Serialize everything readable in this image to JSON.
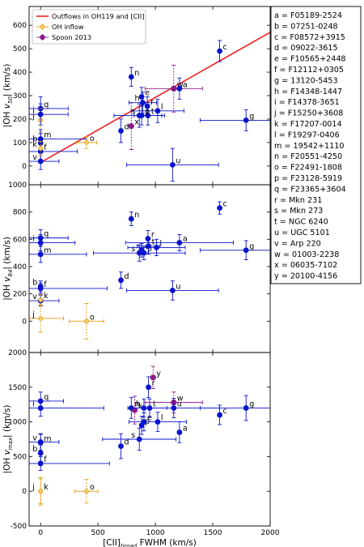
{
  "colors": {
    "blue": "#0a14cc",
    "orange": "#e59a0c",
    "purple": "#8b1a8b",
    "line": "#ee1111"
  },
  "legend_panel": {
    "entries": [
      {
        "key": "a",
        "name": "F05189-2524"
      },
      {
        "key": "b",
        "name": "07251-0248"
      },
      {
        "key": "c",
        "name": "F08572+3915"
      },
      {
        "key": "d",
        "name": "09022-3615"
      },
      {
        "key": "e",
        "name": "F10565+2448"
      },
      {
        "key": "f",
        "name": "F12112+0305"
      },
      {
        "key": "g",
        "name": "13120-5453"
      },
      {
        "key": "h",
        "name": "F14348-1447"
      },
      {
        "key": "i",
        "name": "F14378-3651"
      },
      {
        "key": "j",
        "name": "F15250+3608"
      },
      {
        "key": "k",
        "name": "F17207-0014"
      },
      {
        "key": "l",
        "name": "F19297-0406"
      },
      {
        "key": "m",
        "name": "19542+1110"
      },
      {
        "key": "n",
        "name": "F20551-4250"
      },
      {
        "key": "o",
        "name": "F22491-1808"
      },
      {
        "key": "p",
        "name": "F23128-5919"
      },
      {
        "key": "q",
        "name": "F23365+3604"
      },
      {
        "key": "r",
        "name": "Mkn 231"
      },
      {
        "key": "s",
        "name": "Mkn 273"
      },
      {
        "key": "t",
        "name": "NGC 6240"
      },
      {
        "key": "u",
        "name": "UGC 5101"
      },
      {
        "key": "v",
        "name": "Arp 220"
      },
      {
        "key": "w",
        "name": "01003-2238"
      },
      {
        "key": "x",
        "name": "06035-7102"
      },
      {
        "key": "y",
        "name": "20100-4156"
      }
    ]
  },
  "chart_data": [
    {
      "type": "scatter",
      "ylabel": "|OH v50| (km/s)",
      "ylabel_parts": {
        "main": "|OH ",
        "sym": "v",
        "sub": "50",
        "tail": "| (km/s)"
      },
      "xlim": [
        -100,
        2000
      ],
      "ylim": [
        -80,
        680
      ],
      "yticks": [
        0,
        100,
        200,
        300,
        400,
        500,
        600
      ],
      "legend": [
        "Outflows in OH119 and [CII]",
        "OH inflow",
        "Spoon 2013"
      ],
      "fit_line": {
        "x": [
          0,
          2000
        ],
        "y": [
          15,
          570
        ]
      },
      "points": [
        {
          "l": "q",
          "x": 0,
          "y": 245,
          "xe": 240,
          "ye": 50,
          "s": "blue",
          "lp": "r"
        },
        {
          "l": "j",
          "x": 0,
          "y": 195,
          "xe": 0,
          "ye": 50,
          "s": "orange",
          "lp": "l"
        },
        {
          "l": "i",
          "x": 0,
          "y": 220,
          "xe": 240,
          "ye": 45,
          "s": "blue",
          "lp": "l"
        },
        {
          "l": "m",
          "x": 0,
          "y": 115,
          "xe": 400,
          "ye": 40,
          "s": "blue",
          "lp": "r"
        },
        {
          "l": "b",
          "x": 0,
          "y": 98,
          "xe": 0,
          "ye": 40,
          "s": "blue",
          "lp": "l"
        },
        {
          "l": "f",
          "x": 0,
          "y": 62,
          "xe": 320,
          "ye": 35,
          "s": "blue",
          "lp": "r"
        },
        {
          "l": "v",
          "x": 0,
          "y": 20,
          "xe": 160,
          "ye": 35,
          "s": "blue",
          "lp": "l"
        },
        {
          "l": "k",
          "x": 0,
          "y": 75,
          "xe": 0,
          "ye": 30,
          "s": "orange",
          "lp": "l"
        },
        {
          "l": "o",
          "x": 400,
          "y": 100,
          "xe": 90,
          "ye": 25,
          "s": "orange",
          "lp": "r"
        },
        {
          "l": "d",
          "x": 700,
          "y": 150,
          "xe": 0,
          "ye": 50,
          "s": "blue",
          "lp": "r"
        },
        {
          "l": "n",
          "x": 790,
          "y": 380,
          "xe": 0,
          "ye": 40,
          "s": "blue",
          "lp": "r"
        },
        {
          "l": "s",
          "x": 860,
          "y": 215,
          "xe": 220,
          "ye": 50,
          "s": "blue",
          "lp": "l"
        },
        {
          "l": "x",
          "x": 790,
          "y": 170,
          "xe": 0,
          "ye": 100,
          "s": "purple",
          "lp": "r"
        },
        {
          "l": "h",
          "x": 890,
          "y": 270,
          "xe": 120,
          "ye": 45,
          "s": "blue",
          "lp": "l"
        },
        {
          "l": "e",
          "x": 880,
          "y": 295,
          "xe": 0,
          "ye": 40,
          "s": "blue",
          "lp": "r"
        },
        {
          "l": "r",
          "x": 930,
          "y": 255,
          "xe": 0,
          "ye": 40,
          "s": "blue",
          "lp": "r"
        },
        {
          "l": "t",
          "x": 935,
          "y": 215,
          "xe": 120,
          "ye": 40,
          "s": "blue",
          "lp": "r"
        },
        {
          "l": "l",
          "x": 1020,
          "y": 235,
          "xe": 230,
          "ye": 50,
          "s": "blue",
          "lp": "r"
        },
        {
          "l": "p",
          "x": 880,
          "y": 215,
          "xe": 0,
          "ye": 40,
          "s": "blue",
          "lp": "r"
        },
        {
          "l": "w",
          "x": 1160,
          "y": 330,
          "xe": 250,
          "ye": 100,
          "s": "purple",
          "lp": "r"
        },
        {
          "l": "a",
          "x": 1210,
          "y": 330,
          "xe": 0,
          "ye": 45,
          "s": "blue",
          "lp": "r"
        },
        {
          "l": "u",
          "x": 1150,
          "y": 5,
          "xe": 400,
          "ye": 70,
          "s": "blue",
          "lp": "r"
        },
        {
          "l": "c",
          "x": 1560,
          "y": 490,
          "xe": 0,
          "ye": 45,
          "s": "blue",
          "lp": "r"
        },
        {
          "l": "g",
          "x": 1790,
          "y": 195,
          "xe": 400,
          "ye": 45,
          "s": "blue",
          "lp": "r"
        }
      ]
    },
    {
      "type": "scatter",
      "ylabel": "|OH v84| (km/s)",
      "ylabel_parts": {
        "main": "|OH ",
        "sym": "v",
        "sub": "84",
        "tail": "| (km/s)"
      },
      "xlim": [
        -100,
        2000
      ],
      "ylim": [
        -230,
        1000
      ],
      "yticks": [
        0,
        200,
        400,
        600,
        800,
        1000
      ],
      "points": [
        {
          "l": "q",
          "x": 0,
          "y": 610,
          "xe": 240,
          "ye": 60,
          "s": "blue",
          "lp": "r"
        },
        {
          "l": "i",
          "x": 0,
          "y": 575,
          "xe": 300,
          "ye": 60,
          "s": "blue",
          "lp": "l"
        },
        {
          "l": "m",
          "x": 0,
          "y": 490,
          "xe": 400,
          "ye": 60,
          "s": "blue",
          "lp": "r"
        },
        {
          "l": "b",
          "x": 0,
          "y": 255,
          "xe": 0,
          "ye": 40,
          "s": "blue",
          "lp": "l"
        },
        {
          "l": "f",
          "x": 0,
          "y": 240,
          "xe": 580,
          "ye": 40,
          "s": "blue",
          "lp": "r"
        },
        {
          "l": "v",
          "x": 0,
          "y": 150,
          "xe": 160,
          "ye": 40,
          "s": "blue",
          "lp": "l"
        },
        {
          "l": "k",
          "x": 0,
          "y": 155,
          "xe": 0,
          "ye": 40,
          "s": "orange",
          "lp": "r"
        },
        {
          "l": "j",
          "x": 0,
          "y": 20,
          "xe": 200,
          "ye": 100,
          "s": "orange",
          "lp": "l"
        },
        {
          "l": "o",
          "x": 400,
          "y": 0,
          "xe": 150,
          "ye": 130,
          "s": "orange",
          "lp": "r"
        },
        {
          "l": "d",
          "x": 700,
          "y": 300,
          "xe": 0,
          "ye": 60,
          "s": "blue",
          "lp": "r"
        },
        {
          "l": "n",
          "x": 790,
          "y": 750,
          "xe": 0,
          "ye": 50,
          "s": "blue",
          "lp": "r"
        },
        {
          "l": "s",
          "x": 860,
          "y": 500,
          "xe": 400,
          "ye": 60,
          "s": "blue",
          "lp": "l"
        },
        {
          "l": "p",
          "x": 900,
          "y": 500,
          "xe": 0,
          "ye": 50,
          "s": "blue",
          "lp": "r"
        },
        {
          "l": "e",
          "x": 880,
          "y": 520,
          "xe": 0,
          "ye": 50,
          "s": "blue",
          "lp": "r"
        },
        {
          "l": "r",
          "x": 935,
          "y": 605,
          "xe": 0,
          "ye": 60,
          "s": "blue",
          "lp": "r"
        },
        {
          "l": "t",
          "x": 940,
          "y": 550,
          "xe": 100,
          "ye": 60,
          "s": "blue",
          "lp": "r"
        },
        {
          "l": "l",
          "x": 1010,
          "y": 540,
          "xe": 250,
          "ye": 60,
          "s": "blue",
          "lp": "r"
        },
        {
          "l": "a",
          "x": 1210,
          "y": 575,
          "xe": 470,
          "ye": 60,
          "s": "blue",
          "lp": "r"
        },
        {
          "l": "u",
          "x": 1150,
          "y": 225,
          "xe": 400,
          "ye": 70,
          "s": "blue",
          "lp": "r"
        },
        {
          "l": "c",
          "x": 1560,
          "y": 830,
          "xe": 0,
          "ye": 45,
          "s": "blue",
          "lp": "r"
        },
        {
          "l": "g",
          "x": 1790,
          "y": 520,
          "xe": 400,
          "ye": 70,
          "s": "blue",
          "lp": "r"
        }
      ]
    },
    {
      "type": "scatter",
      "ylabel": "|OH v_max| (km/s)",
      "ylabel_parts": {
        "main": "|OH ",
        "sym": "v",
        "sub": "max",
        "tail": "| (km/s)"
      },
      "xlabel": "[CII]broad FWHM (km/s)",
      "xlabel_parts": {
        "main": "[CII]",
        "sub": "broad",
        "tail": " FWHM (km/s)"
      },
      "xlim": [
        -100,
        2000
      ],
      "ylim": [
        -500,
        2000
      ],
      "xticks": [
        0,
        500,
        1000,
        1500,
        2000
      ],
      "yticks": [
        -500,
        0,
        500,
        1000,
        1500,
        2000
      ],
      "points": [
        {
          "l": "q",
          "x": 0,
          "y": 1300,
          "xe": 200,
          "ye": 130,
          "s": "blue",
          "lp": "r"
        },
        {
          "l": "i",
          "x": 0,
          "y": 1200,
          "xe": 550,
          "ye": 120,
          "s": "blue",
          "lp": "l"
        },
        {
          "l": "v",
          "x": 0,
          "y": 710,
          "xe": 160,
          "ye": 120,
          "s": "blue",
          "lp": "l"
        },
        {
          "l": "m",
          "x": 0,
          "y": 700,
          "xe": 0,
          "ye": 120,
          "s": "blue",
          "lp": "r"
        },
        {
          "l": "b",
          "x": 0,
          "y": 550,
          "xe": 0,
          "ye": 120,
          "s": "blue",
          "lp": "l"
        },
        {
          "l": "f",
          "x": 0,
          "y": 400,
          "xe": 600,
          "ye": 100,
          "s": "blue",
          "lp": "r"
        },
        {
          "l": "j",
          "x": 0,
          "y": 0,
          "xe": 0,
          "ye": 200,
          "s": "orange",
          "lp": "l"
        },
        {
          "l": "k",
          "x": 0,
          "y": 0,
          "xe": 0,
          "ye": 180,
          "s": "orange",
          "lp": "r"
        },
        {
          "l": "o",
          "x": 400,
          "y": 0,
          "xe": 100,
          "ye": 170,
          "s": "orange",
          "lp": "r"
        },
        {
          "l": "d",
          "x": 700,
          "y": 650,
          "xe": 0,
          "ye": 180,
          "s": "blue",
          "lp": "r"
        },
        {
          "l": "s",
          "x": 860,
          "y": 750,
          "xe": 320,
          "ye": 160,
          "s": "blue",
          "lp": "l"
        },
        {
          "l": "n",
          "x": 790,
          "y": 1200,
          "xe": 0,
          "ye": 150,
          "s": "blue",
          "lp": "r"
        },
        {
          "l": "x",
          "x": 820,
          "y": 1170,
          "xe": 0,
          "ye": 200,
          "s": "purple",
          "lp": "r"
        },
        {
          "l": "p",
          "x": 880,
          "y": 950,
          "xe": 0,
          "ye": 130,
          "s": "blue",
          "lp": "r"
        },
        {
          "l": "e",
          "x": 900,
          "y": 1000,
          "xe": 0,
          "ye": 130,
          "s": "blue",
          "lp": "r"
        },
        {
          "l": "h",
          "x": 900,
          "y": 1200,
          "xe": 0,
          "ye": 130,
          "s": "blue",
          "lp": "l"
        },
        {
          "l": "r",
          "x": 940,
          "y": 1500,
          "xe": 0,
          "ye": 150,
          "s": "blue",
          "lp": "r"
        },
        {
          "l": "t",
          "x": 950,
          "y": 1200,
          "xe": 150,
          "ye": 130,
          "s": "blue",
          "lp": "r"
        },
        {
          "l": "y",
          "x": 980,
          "y": 1640,
          "xe": 0,
          "ye": 160,
          "s": "purple",
          "lp": "r"
        },
        {
          "l": "l",
          "x": 1020,
          "y": 1000,
          "xe": 250,
          "ye": 140,
          "s": "blue",
          "lp": "r"
        },
        {
          "l": "w",
          "x": 1160,
          "y": 1280,
          "xe": 250,
          "ye": 150,
          "s": "purple",
          "lp": "r"
        },
        {
          "l": "u",
          "x": 1160,
          "y": 1200,
          "xe": 400,
          "ye": 140,
          "s": "blue",
          "lp": "r"
        },
        {
          "l": "a",
          "x": 1210,
          "y": 850,
          "xe": 0,
          "ye": 150,
          "s": "blue",
          "lp": "r"
        },
        {
          "l": "c",
          "x": 1560,
          "y": 1100,
          "xe": 0,
          "ye": 140,
          "s": "blue",
          "lp": "r"
        },
        {
          "l": "g",
          "x": 1790,
          "y": 1200,
          "xe": 400,
          "ye": 180,
          "s": "blue",
          "lp": "r"
        }
      ]
    }
  ]
}
